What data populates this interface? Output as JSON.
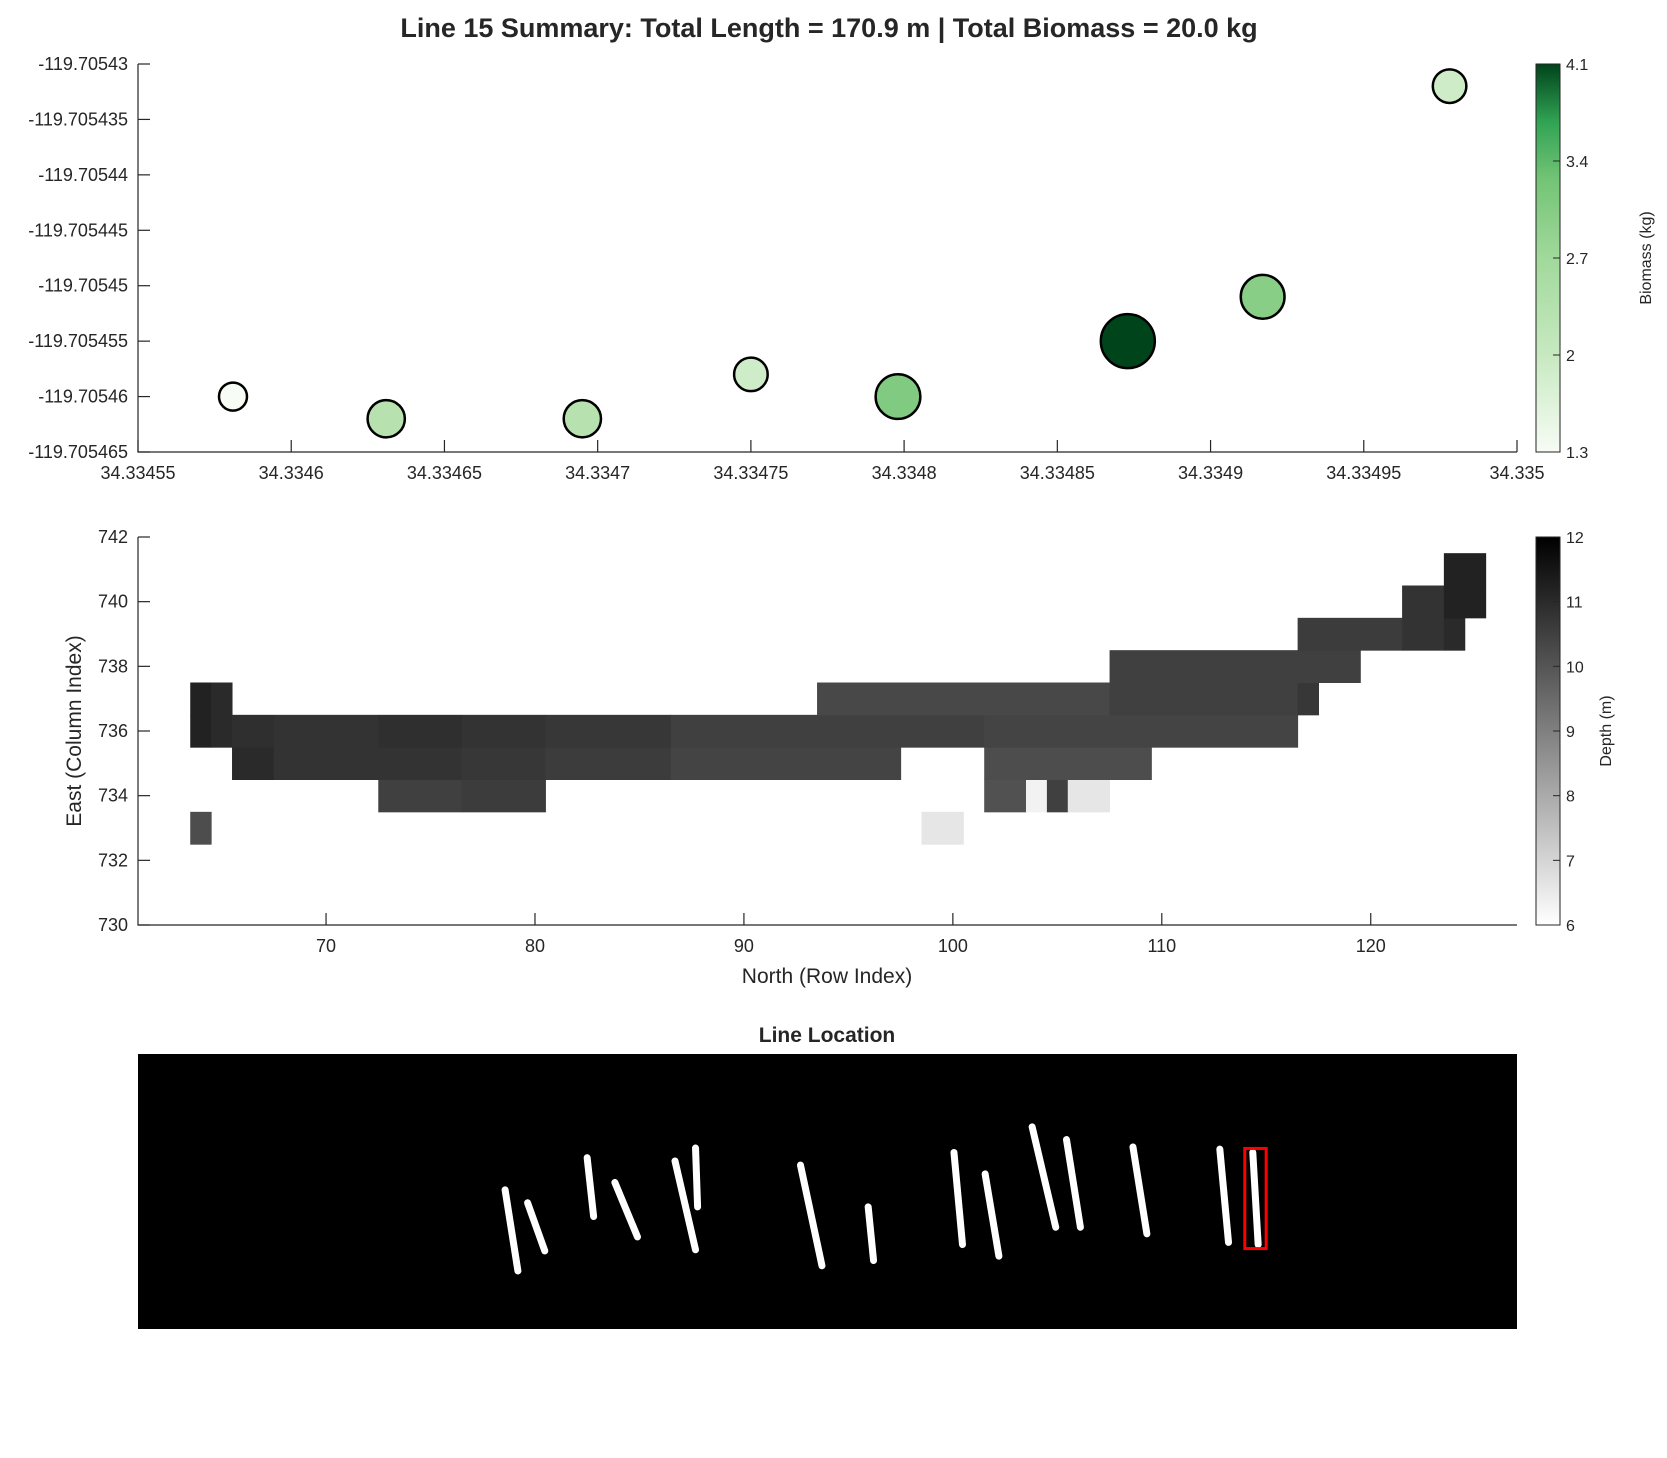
{
  "figure": {
    "title": "Line 15 Summary: Total Length = 170.9 m | Total Biomass = 20.0 kg"
  },
  "chart_data": [
    {
      "type": "scatter",
      "title": "",
      "xlabel": "",
      "ylabel": "",
      "xlim": [
        34.33455,
        34.335
      ],
      "ylim": [
        -119.705465,
        -119.70543
      ],
      "xticks": [
        "34.33455",
        "34.3346",
        "34.33465",
        "34.3347",
        "34.33475",
        "34.3348",
        "34.33485",
        "34.3349",
        "34.33495",
        "34.335"
      ],
      "yticks": [
        "-119.70543",
        "-119.705435",
        "-119.70544",
        "-119.705445",
        "-119.70545",
        "-119.705455",
        "-119.70546",
        "-119.705465"
      ],
      "size_encodes": "biomass",
      "points": [
        {
          "x": 34.334581,
          "y": -119.70546,
          "biomass": 1.3
        },
        {
          "x": 34.334631,
          "y": -119.705462,
          "biomass": 2.3
        },
        {
          "x": 34.334695,
          "y": -119.705462,
          "biomass": 2.3
        },
        {
          "x": 34.33475,
          "y": -119.705458,
          "biomass": 1.9
        },
        {
          "x": 34.334798,
          "y": -119.70546,
          "biomass": 3.1
        },
        {
          "x": 34.334873,
          "y": -119.705455,
          "biomass": 4.1
        },
        {
          "x": 34.334917,
          "y": -119.705451,
          "biomass": 3.0
        },
        {
          "x": 34.334978,
          "y": -119.705432,
          "biomass": 1.9
        }
      ],
      "colorbar": {
        "label": "Biomass (kg)",
        "range": [
          1.3,
          4.1
        ],
        "ticks": [
          "1.3",
          "2",
          "2.7",
          "3.4",
          "4.1"
        ],
        "color_low": "#f7fcf5",
        "color_high": "#00441b"
      },
      "marker_edge_color": "#000000",
      "grid": false
    },
    {
      "type": "heatmap",
      "title": "",
      "xlabel": "North (Row Index)",
      "ylabel": "East (Column Index)",
      "xlim": [
        61,
        127
      ],
      "ylim": [
        730,
        742
      ],
      "xticks": [
        "70",
        "80",
        "90",
        "100",
        "110",
        "120"
      ],
      "yticks": [
        "730",
        "732",
        "734",
        "736",
        "738",
        "740",
        "742"
      ],
      "cell_value": "depth",
      "cells": [
        {
          "x0": 64,
          "x1": 65,
          "y": 733,
          "depth": 10.2
        },
        {
          "x0": 64,
          "x1": 65,
          "y": 736,
          "depth": 11.2
        },
        {
          "x0": 64,
          "x1": 65,
          "y": 737,
          "depth": 11.2
        },
        {
          "x0": 65,
          "x1": 66,
          "y": 736,
          "depth": 11.0
        },
        {
          "x0": 65,
          "x1": 66,
          "y": 737,
          "depth": 11.0
        },
        {
          "x0": 66,
          "x1": 68,
          "y": 735,
          "depth": 11.0
        },
        {
          "x0": 66,
          "x1": 68,
          "y": 736,
          "depth": 10.9
        },
        {
          "x0": 68,
          "x1": 73,
          "y": 735,
          "depth": 10.8
        },
        {
          "x0": 68,
          "x1": 73,
          "y": 736,
          "depth": 10.8
        },
        {
          "x0": 73,
          "x1": 77,
          "y": 734,
          "depth": 10.5
        },
        {
          "x0": 73,
          "x1": 77,
          "y": 735,
          "depth": 10.8
        },
        {
          "x0": 73,
          "x1": 77,
          "y": 736,
          "depth": 10.9
        },
        {
          "x0": 77,
          "x1": 81,
          "y": 734,
          "depth": 10.6
        },
        {
          "x0": 77,
          "x1": 81,
          "y": 735,
          "depth": 10.7
        },
        {
          "x0": 77,
          "x1": 81,
          "y": 736,
          "depth": 10.8
        },
        {
          "x0": 81,
          "x1": 87,
          "y": 735,
          "depth": 10.6
        },
        {
          "x0": 81,
          "x1": 87,
          "y": 736,
          "depth": 10.7
        },
        {
          "x0": 87,
          "x1": 94,
          "y": 735,
          "depth": 10.4
        },
        {
          "x0": 87,
          "x1": 94,
          "y": 736,
          "depth": 10.5
        },
        {
          "x0": 94,
          "x1": 98,
          "y": 735,
          "depth": 10.4
        },
        {
          "x0": 94,
          "x1": 98,
          "y": 736,
          "depth": 10.5
        },
        {
          "x0": 94,
          "x1": 98,
          "y": 737,
          "depth": 10.3
        },
        {
          "x0": 98,
          "x1": 102,
          "y": 736,
          "depth": 10.5
        },
        {
          "x0": 98,
          "x1": 102,
          "y": 737,
          "depth": 10.3
        },
        {
          "x0": 99,
          "x1": 101,
          "y": 733,
          "depth": 6.6
        },
        {
          "x0": 102,
          "x1": 104,
          "y": 734,
          "depth": 10.1
        },
        {
          "x0": 104,
          "x1": 105,
          "y": 734,
          "depth": 6.3
        },
        {
          "x0": 105,
          "x1": 106,
          "y": 734,
          "depth": 10.5
        },
        {
          "x0": 106,
          "x1": 108,
          "y": 734,
          "depth": 6.6
        },
        {
          "x0": 102,
          "x1": 110,
          "y": 735,
          "depth": 10.2
        },
        {
          "x0": 102,
          "x1": 108,
          "y": 736,
          "depth": 10.4
        },
        {
          "x0": 102,
          "x1": 108,
          "y": 737,
          "depth": 10.3
        },
        {
          "x0": 108,
          "x1": 117,
          "y": 736,
          "depth": 10.4
        },
        {
          "x0": 108,
          "x1": 117,
          "y": 737,
          "depth": 10.5
        },
        {
          "x0": 117,
          "x1": 118,
          "y": 737,
          "depth": 10.7
        },
        {
          "x0": 108,
          "x1": 120,
          "y": 738,
          "depth": 10.5
        },
        {
          "x0": 117,
          "x1": 122,
          "y": 739,
          "depth": 10.6
        },
        {
          "x0": 122,
          "x1": 124,
          "y": 739,
          "depth": 10.8
        },
        {
          "x0": 124,
          "x1": 125,
          "y": 739,
          "depth": 11.0
        },
        {
          "x0": 122,
          "x1": 124,
          "y": 740,
          "depth": 10.8
        },
        {
          "x0": 124,
          "x1": 126,
          "y": 740,
          "depth": 11.2
        },
        {
          "x0": 124,
          "x1": 126,
          "y": 741,
          "depth": 11.2
        }
      ],
      "colorbar": {
        "label": "Depth (m)",
        "range": [
          6,
          12
        ],
        "ticks": [
          "6",
          "7",
          "8",
          "9",
          "10",
          "11",
          "12"
        ],
        "color_low": "#ffffff",
        "color_high": "#000000"
      },
      "grid": false
    },
    {
      "type": "image",
      "title": "Line Location",
      "background_color": "#000000",
      "line_color": "#ffffff",
      "highlight_color": "#ff0000",
      "highlighted_line": 15,
      "lines": [
        {
          "x0": 0.2662,
          "y0": 0.494,
          "x1": 0.2755,
          "y1": 0.789
        },
        {
          "x0": 0.2825,
          "y0": 0.541,
          "x1": 0.295,
          "y1": 0.716
        },
        {
          "x0": 0.3257,
          "y0": 0.377,
          "x1": 0.3304,
          "y1": 0.591
        },
        {
          "x0": 0.3458,
          "y0": 0.467,
          "x1": 0.3622,
          "y1": 0.665
        },
        {
          "x0": 0.3894,
          "y0": 0.389,
          "x1": 0.4043,
          "y1": 0.712
        },
        {
          "x0": 0.4043,
          "y0": 0.342,
          "x1": 0.4058,
          "y1": 0.556
        },
        {
          "x0": 0.4804,
          "y0": 0.404,
          "x1": 0.496,
          "y1": 0.77
        },
        {
          "x0": 0.5295,
          "y0": 0.556,
          "x1": 0.5334,
          "y1": 0.751
        },
        {
          "x0": 0.5917,
          "y0": 0.358,
          "x1": 0.5979,
          "y1": 0.693
        },
        {
          "x0": 0.6143,
          "y0": 0.436,
          "x1": 0.6243,
          "y1": 0.735
        },
        {
          "x0": 0.6484,
          "y0": 0.265,
          "x1": 0.6655,
          "y1": 0.63
        },
        {
          "x0": 0.6733,
          "y0": 0.311,
          "x1": 0.6834,
          "y1": 0.63
        },
        {
          "x0": 0.7215,
          "y0": 0.338,
          "x1": 0.7316,
          "y1": 0.654
        },
        {
          "x0": 0.7845,
          "y0": 0.346,
          "x1": 0.7908,
          "y1": 0.685
        },
        {
          "x0": 0.8084,
          "y0": 0.358,
          "x1": 0.8123,
          "y1": 0.693
        }
      ]
    }
  ]
}
